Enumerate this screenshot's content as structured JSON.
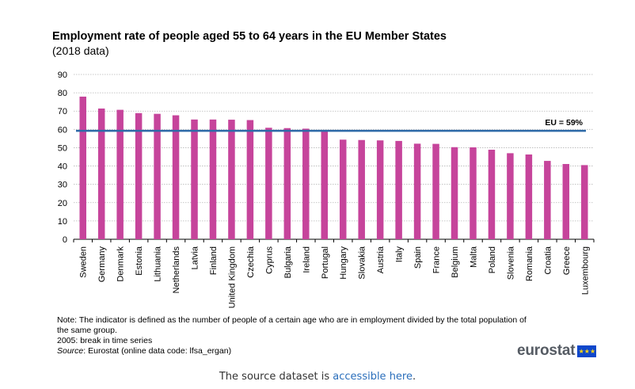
{
  "chart_data": {
    "type": "bar",
    "title": "Employment rate of people aged 55 to 64 years in the EU Member States",
    "subtitle": "(2018 data)",
    "categories": [
      "Sweden",
      "Germany",
      "Denmark",
      "Estonia",
      "Lithuania",
      "Netherlands",
      "Latvia",
      "Finland",
      "United Kingdom",
      "Czechia",
      "Cyprus",
      "Bulgaria",
      "Ireland",
      "Portugal",
      "Hungary",
      "Slovakia",
      "Austria",
      "Italy",
      "Spain",
      "France",
      "Belgium",
      "Malta",
      "Poland",
      "Slovenia",
      "Romania",
      "Croatia",
      "Greece",
      "Luxembourg"
    ],
    "values": [
      77.9,
      71.4,
      70.7,
      68.9,
      68.5,
      67.7,
      65.4,
      65.4,
      65.3,
      65.1,
      60.9,
      60.7,
      60.4,
      59.2,
      54.4,
      54.2,
      54.0,
      53.7,
      52.2,
      52.1,
      50.3,
      50.2,
      48.9,
      47.0,
      46.3,
      42.8,
      41.1,
      40.5
    ],
    "ylim": [
      0,
      90
    ],
    "yticks": [
      0,
      10,
      20,
      30,
      40,
      50,
      60,
      70,
      80,
      90
    ],
    "grid": true,
    "bar_color": "#c6449b",
    "reference_line": {
      "label": "EU = 59%",
      "value": 59,
      "color": "#2e6aa8"
    }
  },
  "notes": {
    "note": "Note: The indicator is defined as the number of people of a certain age who are in employment divided by the total population of the same group.",
    "break": "2005: break in time series",
    "source_label": "Source",
    "source_text": ": Eurostat (online data code: lfsa_ergan)"
  },
  "logo": {
    "text": "eurostat",
    "flag_icon": "eu-flag-icon"
  },
  "footer": {
    "prefix": "The source dataset is ",
    "link": "accessible here",
    "suffix": "."
  }
}
